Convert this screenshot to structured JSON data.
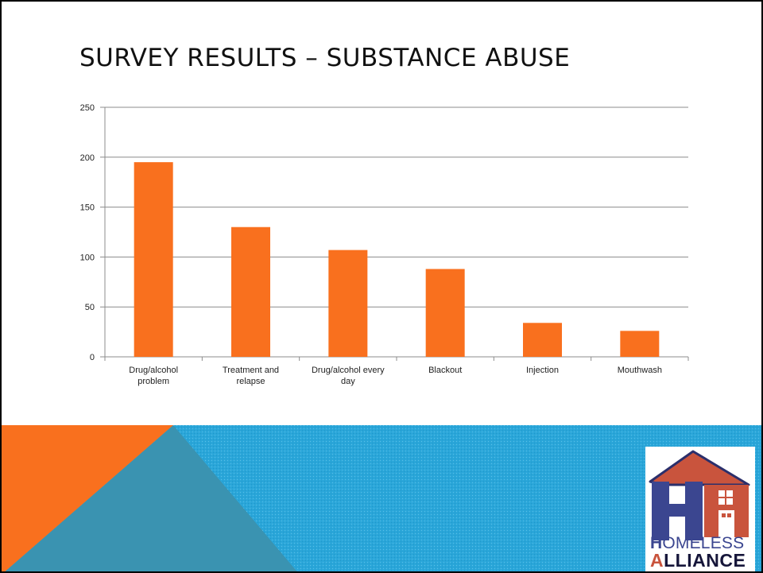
{
  "slide": {
    "title": "SURVEY RESULTS – SUBSTANCE ABUSE"
  },
  "chart_data": {
    "type": "bar",
    "categories": [
      [
        "Drug/alcohol",
        "problem"
      ],
      [
        "Treatment and",
        "relapse"
      ],
      [
        "Drug/alcohol every",
        "day"
      ],
      [
        "Blackout"
      ],
      [
        "Injection"
      ],
      [
        "Mouthwash"
      ]
    ],
    "values": [
      195,
      130,
      107,
      88,
      34,
      26
    ],
    "ylim": [
      0,
      250
    ],
    "yticks": [
      0,
      50,
      100,
      150,
      200,
      250
    ],
    "grid": true,
    "legend": "none",
    "colors": {
      "bar": "#f9701e",
      "grid": "#8c8c8c"
    }
  },
  "banner": {
    "colors": {
      "orange": "#f9701e",
      "blue": "#2aa6d9",
      "teal": "#3a93b1"
    }
  },
  "logo": {
    "line1_first": "H",
    "line1_rest": "OMELESS",
    "line2_first": "A",
    "line2_rest": "LLIANCE",
    "colors": {
      "roof": "#c9543d",
      "h_letter": "#3b4690",
      "wall": "#c9543d"
    }
  }
}
